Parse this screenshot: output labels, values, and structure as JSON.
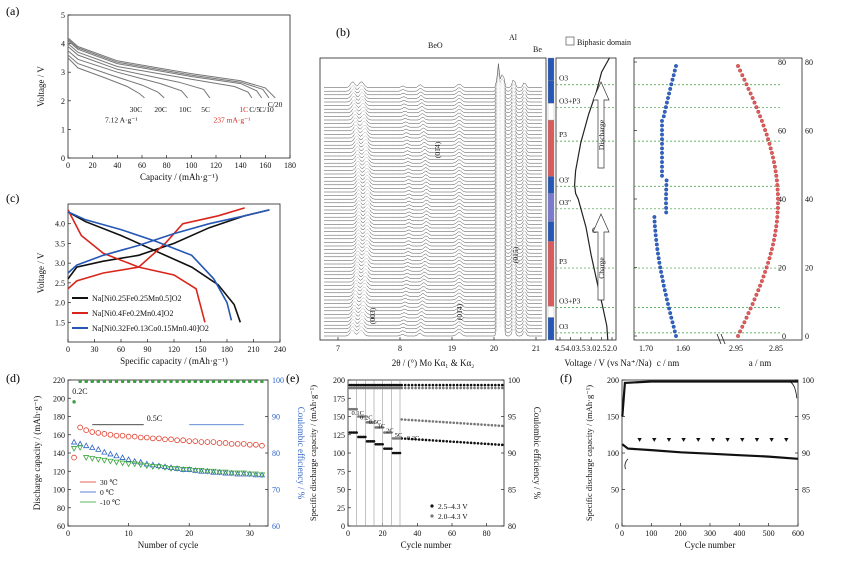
{
  "chart_data": [
    {
      "panel": "(a)",
      "type": "line",
      "xlabel": "Capacity / (mAh·g⁻¹)",
      "ylabel": "Voltage / V",
      "xlim": [
        0,
        180
      ],
      "ylim": [
        0,
        5
      ],
      "xticks": [
        "0",
        "20",
        "40",
        "60",
        "80",
        "100",
        "120",
        "140",
        "160",
        "180"
      ],
      "yticks": [
        "0",
        "1",
        "2",
        "3",
        "4",
        "5"
      ],
      "series": [
        {
          "name": "C/20",
          "color": "#777777",
          "points": [
            [
              0,
              4.2
            ],
            [
              8,
              3.9
            ],
            [
              40,
              3.4
            ],
            [
              100,
              2.95
            ],
            [
              140,
              2.7
            ],
            [
              160,
              2.45
            ],
            [
              168,
              2.1
            ]
          ]
        },
        {
          "name": "C/10",
          "color": "#777777",
          "points": [
            [
              0,
              4.15
            ],
            [
              8,
              3.85
            ],
            [
              40,
              3.35
            ],
            [
              100,
              2.9
            ],
            [
              140,
              2.65
            ],
            [
              158,
              2.4
            ],
            [
              163,
              2.1
            ]
          ]
        },
        {
          "name": "C/5",
          "color": "#777777",
          "points": [
            [
              0,
              4.1
            ],
            [
              8,
              3.8
            ],
            [
              40,
              3.3
            ],
            [
              100,
              2.85
            ],
            [
              140,
              2.6
            ],
            [
              153,
              2.35
            ],
            [
              157,
              2.1
            ]
          ]
        },
        {
          "name": "1C",
          "color": "#777777",
          "points": [
            [
              0,
              4.0
            ],
            [
              8,
              3.7
            ],
            [
              40,
              3.2
            ],
            [
              100,
              2.75
            ],
            [
              135,
              2.5
            ],
            [
              146,
              2.3
            ],
            [
              149,
              2.1
            ]
          ]
        },
        {
          "name": "5C",
          "color": "#777777",
          "points": [
            [
              0,
              3.9
            ],
            [
              8,
              3.6
            ],
            [
              40,
              3.1
            ],
            [
              90,
              2.65
            ],
            [
              110,
              2.4
            ],
            [
              115,
              2.1
            ]
          ]
        },
        {
          "name": "10C",
          "color": "#777777",
          "points": [
            [
              0,
              3.75
            ],
            [
              8,
              3.45
            ],
            [
              40,
              3.0
            ],
            [
              75,
              2.6
            ],
            [
              92,
              2.35
            ],
            [
              97,
              2.1
            ]
          ]
        },
        {
          "name": "20C",
          "color": "#777777",
          "points": [
            [
              0,
              3.6
            ],
            [
              8,
              3.3
            ],
            [
              35,
              2.9
            ],
            [
              60,
              2.55
            ],
            [
              73,
              2.3
            ],
            [
              78,
              2.1
            ]
          ]
        },
        {
          "name": "30C",
          "color": "#777777",
          "points": [
            [
              0,
              3.5
            ],
            [
              8,
              3.15
            ],
            [
              30,
              2.8
            ],
            [
              48,
              2.5
            ],
            [
              58,
              2.25
            ],
            [
              62,
              2.1
            ]
          ]
        }
      ],
      "annotations": [
        "C/20",
        "C/10",
        "C/5",
        "1C",
        "5C",
        "10C",
        "20C",
        "30C",
        "7.12 A·g⁻¹",
        "237 mA·g⁻¹"
      ],
      "highlight_color": "#d9261c"
    },
    {
      "panel": "(b)",
      "type": "line",
      "xlabel": "2θ / (°) Mo Kα₁ & Kα₂",
      "xticks": [
        "7",
        "8",
        "19",
        "20",
        "21"
      ],
      "peak_labels": [
        "BeO",
        "Al",
        "Be",
        "(003)",
        "(01̄4)",
        "(015)",
        "(01̄4)"
      ],
      "voltage_axis": {
        "label": "Voltage / V (vs Na⁺/Na)",
        "ticks": [
          "4.5",
          "4.0",
          "3.5",
          "3.0",
          "2.5",
          "2.0"
        ]
      },
      "legend": "Biphasic domain",
      "phases": [
        "O3",
        "O3+P3",
        "P3",
        "O3'",
        "O3''",
        "P3",
        "O3+P3",
        "O3"
      ],
      "phase_label_right": "O3'",
      "arrows": [
        "Discharge",
        "Charge"
      ],
      "lattice": {
        "c_label": "c / nm",
        "c_ticks": [
          "1.70",
          "1.60"
        ],
        "a_label": "a / nm",
        "a_ticks": [
          "2.95",
          "2.85"
        ],
        "y_ticks": [
          "0",
          "20",
          "40",
          "60",
          "80"
        ]
      }
    },
    {
      "panel": "(c)",
      "type": "line",
      "xlabel": "Specific capacity / (mAh·g⁻¹)",
      "ylabel": "Voltage / V",
      "xlim": [
        0,
        240
      ],
      "ylim": [
        1,
        4.5
      ],
      "xticks": [
        "0",
        "30",
        "60",
        "90",
        "120",
        "150",
        "180",
        "210",
        "240"
      ],
      "yticks": [
        "1.5",
        "2.0",
        "2.5",
        "3.0",
        "3.5",
        "4.0"
      ],
      "series": [
        {
          "name": "Na[Ni0.25Fe0.25Mn0.5]O2",
          "color": "#111111",
          "charge": [
            [
              0,
              2.6
            ],
            [
              10,
              2.9
            ],
            [
              40,
              3.05
            ],
            [
              80,
              3.2
            ],
            [
              120,
              3.5
            ],
            [
              160,
              3.9
            ],
            [
              200,
              4.2
            ],
            [
              228,
              4.35
            ]
          ],
          "discharge": [
            [
              0,
              4.3
            ],
            [
              20,
              4.05
            ],
            [
              60,
              3.7
            ],
            [
              100,
              3.3
            ],
            [
              140,
              2.9
            ],
            [
              170,
              2.45
            ],
            [
              188,
              1.95
            ],
            [
              195,
              1.5
            ]
          ]
        },
        {
          "name": "Na[Ni0.4Fe0.2Mn0.4]O2",
          "color": "#d9261c",
          "charge": [
            [
              0,
              2.35
            ],
            [
              10,
              2.55
            ],
            [
              40,
              2.75
            ],
            [
              80,
              2.9
            ],
            [
              110,
              3.5
            ],
            [
              130,
              4.0
            ],
            [
              150,
              4.1
            ],
            [
              170,
              4.2
            ],
            [
              200,
              4.4
            ]
          ],
          "discharge": [
            [
              0,
              4.35
            ],
            [
              15,
              3.7
            ],
            [
              40,
              3.25
            ],
            [
              80,
              2.9
            ],
            [
              120,
              2.7
            ],
            [
              145,
              2.35
            ],
            [
              155,
              1.5
            ]
          ]
        },
        {
          "name": "Na[Ni0.32Fe0.13Co0.15Mn0.40]O2",
          "color": "#2657b5",
          "charge": [
            [
              0,
              2.75
            ],
            [
              10,
              2.95
            ],
            [
              40,
              3.2
            ],
            [
              80,
              3.45
            ],
            [
              120,
              3.75
            ],
            [
              160,
              4.0
            ],
            [
              200,
              4.2
            ],
            [
              228,
              4.35
            ]
          ],
          "discharge": [
            [
              0,
              4.3
            ],
            [
              20,
              4.1
            ],
            [
              60,
              3.85
            ],
            [
              100,
              3.55
            ],
            [
              140,
              3.2
            ],
            [
              165,
              2.6
            ],
            [
              180,
              2.0
            ],
            [
              185,
              1.55
            ]
          ]
        }
      ],
      "legend_placement": "bottom-left"
    },
    {
      "panel": "(d)",
      "type": "scatter",
      "xlabel": "Number of cycle",
      "ylabel": "Discharge capacity / (mAh·g⁻¹)",
      "y2label": "Coulombic efficiency / %",
      "xlim": [
        0,
        33
      ],
      "ylim": [
        60,
        220
      ],
      "y2lim": [
        60,
        100
      ],
      "xticks": [
        "0",
        "10",
        "20",
        "30"
      ],
      "yticks": [
        "60",
        "80",
        "100",
        "120",
        "140",
        "160",
        "180",
        "200",
        "220"
      ],
      "y2ticks": [
        "60",
        "70",
        "80",
        "90",
        "100"
      ],
      "annotations": [
        "0.2C",
        "0.5C"
      ],
      "series": [
        {
          "name": "30 ℃",
          "color": "#e23b2a",
          "marker": "circle",
          "values": [
            135,
            168,
            165,
            163,
            162,
            161,
            160,
            159,
            159,
            158,
            158,
            157,
            157,
            156,
            156,
            155,
            155,
            154,
            154,
            153,
            153,
            152,
            152,
            152,
            151,
            151,
            150,
            150,
            150,
            149,
            149,
            148
          ]
        },
        {
          "name": "0 ℃",
          "color": "#2e63c4",
          "marker": "triangle-up",
          "values": [
            152,
            150,
            148,
            146,
            144,
            141,
            139,
            137,
            135,
            133,
            131,
            130,
            128,
            127,
            126,
            125,
            124,
            123,
            122,
            122,
            121,
            120,
            120,
            119,
            119,
            118,
            118,
            117,
            117,
            117,
            116,
            116
          ]
        },
        {
          "name": "-10 ℃",
          "color": "#3aa43a",
          "marker": "triangle-down",
          "values": [
            145,
            146,
            135,
            134,
            133,
            132,
            131,
            130,
            129,
            128,
            128,
            127,
            126,
            125,
            125,
            124,
            123,
            123,
            122,
            122,
            121,
            121,
            120,
            120,
            119,
            119,
            118,
            118,
            118,
            117,
            117,
            116
          ]
        }
      ],
      "efficiency_value": 100
    },
    {
      "panel": "(e)",
      "type": "scatter",
      "xlabel": "Cycle number",
      "ylabel": "Specific discharge capacity / (mAh·g⁻¹)",
      "y2label": "Coulombic efficiency / %",
      "xlim": [
        0,
        90
      ],
      "ylim": [
        0,
        200
      ],
      "y2lim": [
        80,
        100
      ],
      "xticks": [
        "0",
        "20",
        "40",
        "60",
        "80"
      ],
      "yticks": [
        "0",
        "25",
        "50",
        "75",
        "100",
        "125",
        "150",
        "175",
        "200"
      ],
      "y2ticks": [
        "80",
        "85",
        "90",
        "95",
        "100"
      ],
      "rate_labels": [
        "0.1C",
        "0.2C",
        "0.5C",
        "1C",
        "2C",
        "5C",
        "0.2C"
      ],
      "series": [
        {
          "name": "2.5–4.3 V",
          "color": "#111111",
          "segments": [
            [
              1,
              5,
              128
            ],
            [
              6,
              10,
              122
            ],
            [
              11,
              15,
              116
            ],
            [
              16,
              20,
              112
            ],
            [
              21,
              25,
              106
            ],
            [
              26,
              30,
              100
            ],
            [
              31,
              90,
              120,
              111
            ]
          ]
        },
        {
          "name": "2.0–4.3 V",
          "color": "#777777",
          "segments": [
            [
              1,
              5,
              160
            ],
            [
              6,
              10,
              150
            ],
            [
              11,
              15,
              142
            ],
            [
              16,
              20,
              135
            ],
            [
              21,
              25,
              128
            ],
            [
              26,
              30,
              120
            ],
            [
              31,
              90,
              146,
              137
            ]
          ]
        }
      ]
    },
    {
      "panel": "(f)",
      "type": "scatter",
      "xlabel": "Cycle number",
      "ylabel": "Specific discharge capacity / (mAh·g⁻¹)",
      "xlim": [
        0,
        600
      ],
      "ylim": [
        0,
        200
      ],
      "y2lim": [
        80,
        100
      ],
      "xticks": [
        "0",
        "100",
        "200",
        "300",
        "400",
        "500",
        "600"
      ],
      "yticks": [
        "0",
        "50",
        "100",
        "150",
        "200"
      ],
      "y2ticks": [
        "85",
        "90",
        "95",
        "100"
      ],
      "capacity": [
        [
          1,
          112
        ],
        [
          20,
          106
        ],
        [
          100,
          104
        ],
        [
          200,
          101
        ],
        [
          300,
          99
        ],
        [
          400,
          97
        ],
        [
          500,
          95
        ],
        [
          600,
          92
        ]
      ],
      "efficiency": [
        [
          1,
          95
        ],
        [
          10,
          99.6
        ],
        [
          100,
          99.8
        ],
        [
          300,
          99.8
        ],
        [
          600,
          99.8
        ]
      ]
    }
  ]
}
